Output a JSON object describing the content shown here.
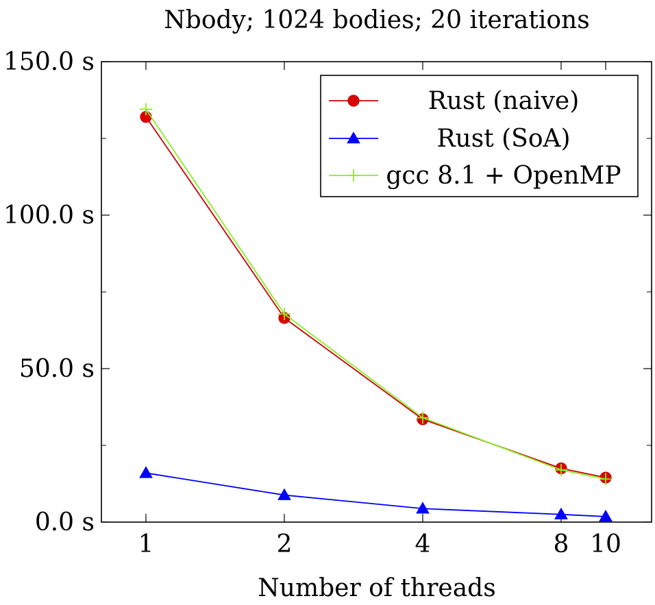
{
  "chart_data": {
    "type": "line",
    "title": "Nbody; 1024 bodies; 20 iterations",
    "xlabel": "Number of threads",
    "ylabel": "",
    "x_scale": "log2",
    "x": [
      1,
      2,
      4,
      8,
      10
    ],
    "x_tick_labels": [
      "1",
      "2",
      "4",
      "8",
      "10"
    ],
    "ylim": [
      0,
      150
    ],
    "y_ticks": [
      0,
      50,
      100,
      150
    ],
    "y_tick_labels": [
      "0.0 s",
      "50.0 s",
      "100.0 s",
      "150.0 s"
    ],
    "y_minor_ticks": [
      25,
      75,
      125
    ],
    "grid": false,
    "legend_position": "top-right",
    "series": [
      {
        "name": "Rust (naive)",
        "color": "#cc0000",
        "marker": "circle",
        "marker_fill": "#dd0000",
        "values": [
          132.0,
          66.5,
          33.5,
          17.5,
          14.5
        ]
      },
      {
        "name": "Rust (SoA)",
        "color": "#0000ff",
        "marker": "triangle",
        "marker_fill": "#0000ff",
        "values": [
          16.0,
          8.8,
          4.4,
          2.5,
          1.8
        ]
      },
      {
        "name": "gcc 8.1 + OpenMP",
        "color": "#88ee22",
        "marker": "plus",
        "marker_fill": "#88ee22",
        "values": [
          134.5,
          67.8,
          34.0,
          17.0,
          14.0
        ]
      }
    ]
  }
}
